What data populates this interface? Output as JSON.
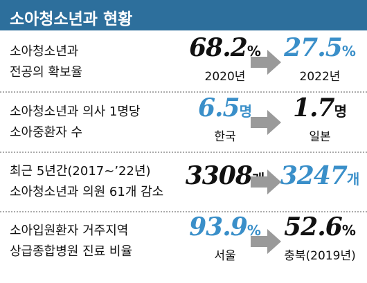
{
  "header": {
    "title": "소아청소년과 현황"
  },
  "rows": [
    {
      "label": [
        "소아청소년과",
        "전공의 확보율"
      ],
      "left": {
        "value": "68.2",
        "unit": "%",
        "caption": "2020년",
        "color": "#111111"
      },
      "right": {
        "value": "27.5",
        "unit": "%",
        "caption": "2022년",
        "color": "#3a8fc9"
      }
    },
    {
      "label": [
        "소아청소년과 의사 1명당",
        "소아중환자 수"
      ],
      "left": {
        "value": "6.5",
        "unit": "명",
        "caption": "한국",
        "color": "#3a8fc9"
      },
      "right": {
        "value": "1.7",
        "unit": "명",
        "caption": "일본",
        "color": "#111111"
      }
    },
    {
      "label": [
        "최근 5년간(2017~’22년)",
        "소아청소년과 의원 61개 감소"
      ],
      "left": {
        "value": "3308",
        "unit": "개",
        "color": "#111111"
      },
      "right": {
        "value": "3247",
        "unit": "개",
        "color": "#3a8fc9"
      }
    },
    {
      "label": [
        "소아입원환자 거주지역",
        "상급종합병원 진료 비율"
      ],
      "left": {
        "value": "93.9",
        "unit": "%",
        "caption": "서울",
        "color": "#3a8fc9"
      },
      "right": {
        "value": "52.6",
        "unit": "%",
        "caption": "충북(2019년)",
        "color": "#111111"
      }
    }
  ]
}
